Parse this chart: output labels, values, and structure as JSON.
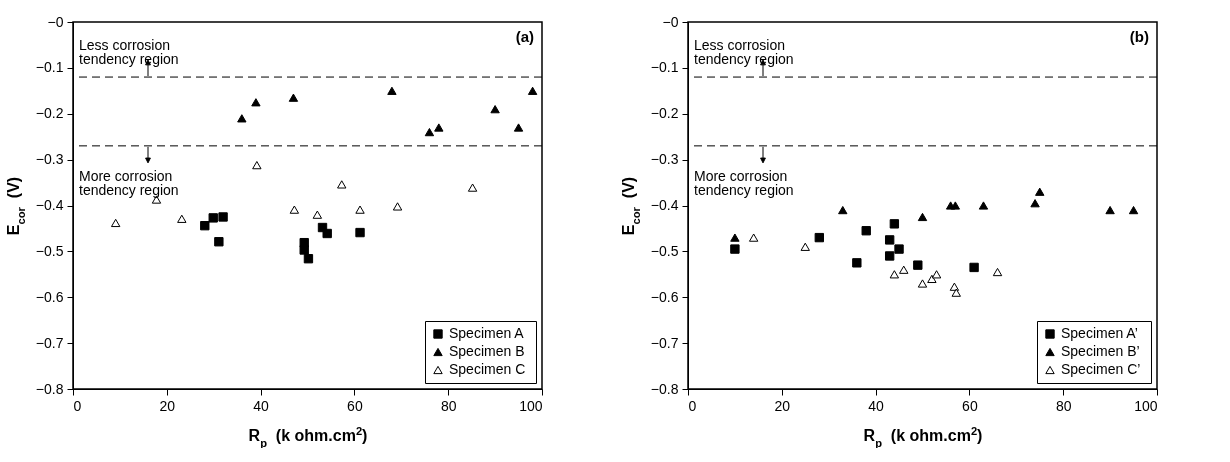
{
  "chart_data": [
    {
      "type": "scatter",
      "xlabel": "R$_{p}$  (k ohm.cm$^{2}$)",
      "ylabel": "E$_{cor}$  (V)",
      "xlim": [
        0,
        100
      ],
      "xticks": [
        0,
        20,
        40,
        60,
        80,
        100
      ],
      "ylim": [
        -0.8,
        0
      ],
      "yticks": [
        {
          "value": 0,
          "label": "−0"
        },
        -0.1,
        -0.2,
        -0.3,
        -0.4,
        -0.5,
        -0.6,
        -0.7,
        -0.8
      ],
      "grid": false,
      "legend": "bottom right",
      "series": [
        {
          "name": "Specimen  A",
          "color": "#000000",
          "marker": "square",
          "x": [
            28.1,
            29.9,
            32.0,
            31.1,
            49.3,
            49.3,
            50.2,
            53.2,
            54.2,
            61.2
          ],
          "values": [
            -0.444,
            -0.427,
            -0.425,
            -0.479,
            -0.481,
            -0.497,
            -0.516,
            -0.448,
            -0.461,
            -0.459
          ]
        },
        {
          "name": "Specimen  B",
          "color": "#000000",
          "marker": "triangle",
          "x": [
            36,
            39,
            47,
            68,
            76,
            78,
            90,
            95,
            98
          ],
          "values": [
            -0.21,
            -0.175,
            -0.165,
            -0.15,
            -0.24,
            -0.23,
            -0.19,
            -0.23,
            -0.15
          ]
        },
        {
          "name": "Specimen  C",
          "color": "#ffffff",
          "marker": "triangle",
          "x": [
            9.1,
            17.8,
            23.2,
            39.2,
            47.2,
            52.1,
            57.3,
            61.2,
            69.2,
            85.2
          ],
          "values": [
            -0.438,
            -0.387,
            -0.429,
            -0.312,
            -0.409,
            -0.42,
            -0.354,
            -0.409,
            -0.402,
            -0.361
          ]
        }
      ],
      "ref_lines": [
        {
          "axis": "y",
          "value": -0.12,
          "label": "Less corrosion tendency region",
          "line_style": "dashed"
        },
        {
          "axis": "y",
          "value": -0.27,
          "label": "More corrosion tendency region",
          "line_style": "dashed"
        }
      ],
      "annotations": [
        "(a)"
      ]
    },
    {
      "type": "scatter",
      "xlabel": "R$_{p}$  (k ohm.cm$^{2}$)",
      "ylabel": "E$_{cor}$  (V)",
      "xlim": [
        0,
        100
      ],
      "xticks": [
        0,
        20,
        40,
        60,
        80,
        100
      ],
      "ylim": [
        -0.8,
        0
      ],
      "yticks": [
        {
          "value": 0,
          "label": "−0"
        },
        -0.1,
        -0.2,
        -0.3,
        -0.4,
        -0.5,
        -0.6,
        -0.7,
        -0.8
      ],
      "grid": false,
      "legend": "bottom right",
      "series": [
        {
          "name": "Specimen  A’",
          "color": "#000000",
          "marker": "square",
          "x": [
            10,
            28,
            36,
            38,
            43,
            43,
            44,
            45,
            49,
            61
          ],
          "values": [
            -0.495,
            -0.47,
            -0.525,
            -0.455,
            -0.475,
            -0.51,
            -0.44,
            -0.495,
            -0.53,
            -0.535
          ]
        },
        {
          "name": "Specimen  B’",
          "color": "#000000",
          "marker": "triangle",
          "x": [
            10,
            33,
            50,
            56,
            57,
            63,
            74,
            75,
            90,
            95
          ],
          "values": [
            -0.47,
            -0.41,
            -0.425,
            -0.4,
            -0.4,
            -0.4,
            -0.395,
            -0.37,
            -0.41,
            -0.41
          ]
        },
        {
          "name": "Specimen  C’",
          "color": "#ffffff",
          "marker": "triangle",
          "x": [
            14,
            25,
            44,
            46,
            50,
            52,
            53,
            56.8,
            57.2,
            66
          ],
          "values": [
            -0.47,
            -0.49,
            -0.55,
            -0.54,
            -0.57,
            -0.56,
            -0.55,
            -0.577,
            -0.59,
            -0.545
          ]
        }
      ],
      "ref_lines": [
        {
          "axis": "y",
          "value": -0.12,
          "label": "Less corrosion tendency region",
          "line_style": "dashed"
        },
        {
          "axis": "y",
          "value": -0.27,
          "label": "More corrosion tendency region",
          "line_style": "dashed"
        }
      ],
      "annotations": [
        "(b)"
      ]
    }
  ]
}
